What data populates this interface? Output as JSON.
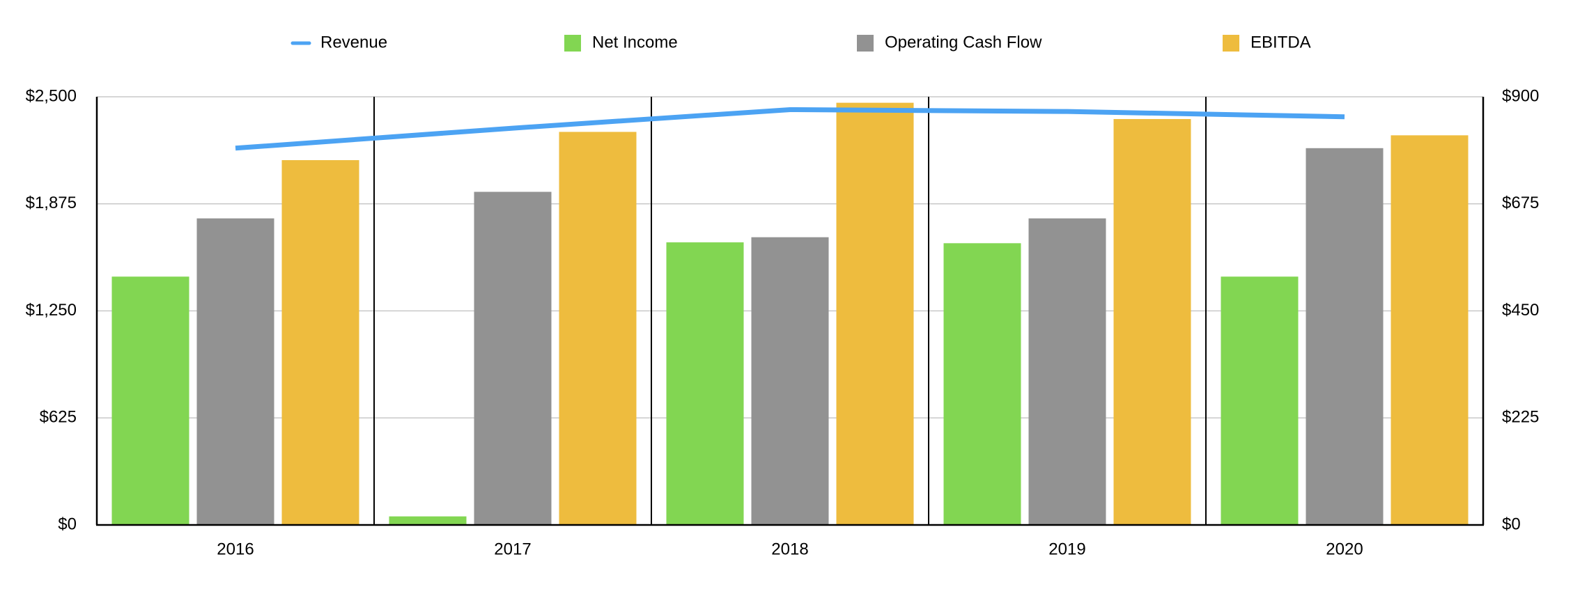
{
  "chart_data": {
    "type": "bar",
    "categories": [
      "2016",
      "2017",
      "2018",
      "2019",
      "2020"
    ],
    "series": [
      {
        "name": "Net Income",
        "values": [
          1450,
          50,
          1650,
          1645,
          1450
        ],
        "color": "#82d652",
        "axis": "left"
      },
      {
        "name": "Operating Cash Flow",
        "values": [
          1790,
          1945,
          1680,
          1790,
          2200
        ],
        "color": "#929292",
        "axis": "left"
      },
      {
        "name": "EBITDA",
        "values": [
          2130,
          2295,
          2465,
          2370,
          2275
        ],
        "color": "#eebc3e",
        "axis": "left"
      }
    ],
    "line_series": [
      {
        "name": "Revenue",
        "values": [
          792,
          834,
          873,
          869,
          858
        ],
        "color": "#4ca3f3",
        "axis": "right"
      }
    ],
    "legend_order": [
      "Revenue",
      "Net Income",
      "Operating Cash Flow",
      "EBITDA"
    ],
    "left_axis": {
      "min": 0,
      "max": 2500,
      "ticks": [
        0,
        625,
        1250,
        1875,
        2500
      ],
      "tick_labels": [
        "$0",
        "$625",
        "$1,250",
        "$1,875",
        "$2,500"
      ]
    },
    "right_axis": {
      "min": 0,
      "max": 900,
      "ticks": [
        0,
        225,
        450,
        675,
        900
      ],
      "tick_labels": [
        "$0",
        "$225",
        "$450",
        "$675",
        "$900"
      ]
    },
    "title": "",
    "xlabel": "",
    "ylabel": "",
    "grid": true,
    "legend_position": "top"
  }
}
